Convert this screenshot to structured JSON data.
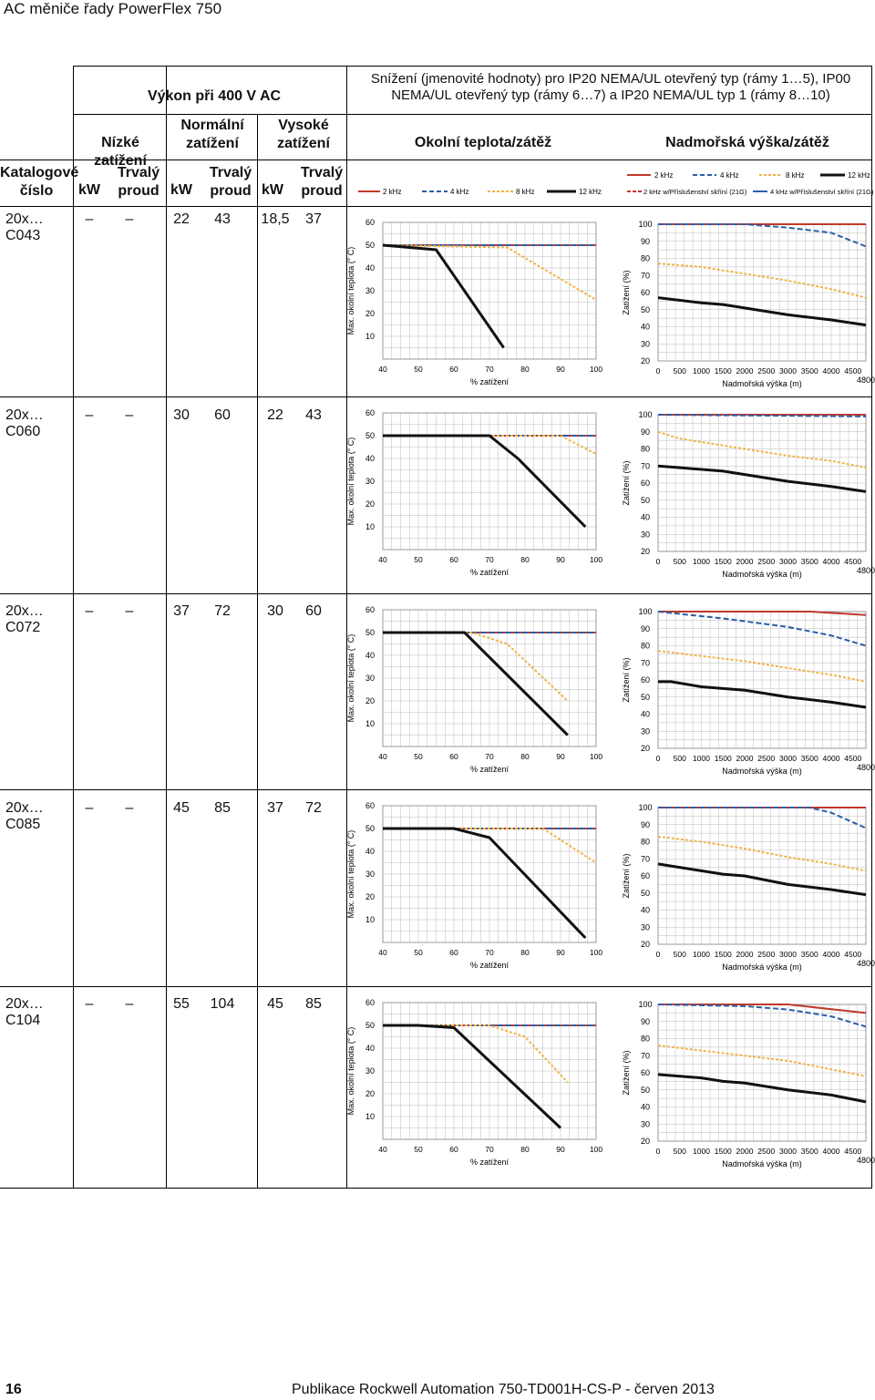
{
  "page": {
    "title": "AC měniče řady PowerFlex 750",
    "page_number": "16",
    "footer": "Publikace Rockwell Automation 750-TD001H-CS-P - červen 2013"
  },
  "header": {
    "power_group": "Výkon při 400 V AC",
    "derating_title": "Snížení (jmenovité hodnoty) pro IP20 NEMA/UL otevřený typ (rámy 1…5), IP00 NEMA/UL otevřený typ (rámy 6…7) a IP20 NEMA/UL typ 1 (rámy 8…10)",
    "low_duty": "Nízké zatížení",
    "normal_duty": "Normální zatížení",
    "heavy_duty": "Vysoké zatížení",
    "ambient_load": "Okolní teplota/zátěž",
    "altitude_load": "Nadmořská výška/zátěž",
    "catalog": "Katalogové číslo",
    "kw": "kW",
    "cont_current": "Trvalý proud"
  },
  "legend": {
    "ambient": [
      "2 kHz",
      "4 kHz",
      "8 kHz",
      "12 kHz"
    ],
    "altitude_top": [
      "2 kHz",
      "4 kHz",
      "8 kHz",
      "12 kHz"
    ],
    "altitude_bottom": [
      "2 kHz w/Příslušenství skříní (21G)",
      "4 kHz w/Příslušenství skříní (21G)"
    ]
  },
  "colors": {
    "k2": "#c0392b",
    "k4": "#2a5ea8",
    "k8": "#f0b34a",
    "k12": "#111111"
  },
  "axes": {
    "ambient_ylabel": "Max. okolní teplota (° C)",
    "ambient_xlabel": "% zatížení",
    "altitude_ylabel": "Zatížení (%)",
    "altitude_xlabel": "Nadmořská výška (m)",
    "altitude_extra": "4800"
  },
  "rows": [
    {
      "catalog": "20x…C043",
      "ld_kw": "–",
      "ld_a": "–",
      "nd_kw": "22",
      "nd_a": "43",
      "hd_kw": "18,5",
      "hd_a": "37"
    },
    {
      "catalog": "20x…C060",
      "ld_kw": "–",
      "ld_a": "–",
      "nd_kw": "30",
      "nd_a": "60",
      "hd_kw": "22",
      "hd_a": "43"
    },
    {
      "catalog": "20x…C072",
      "ld_kw": "–",
      "ld_a": "–",
      "nd_kw": "37",
      "nd_a": "72",
      "hd_kw": "30",
      "hd_a": "60"
    },
    {
      "catalog": "20x…C085",
      "ld_kw": "–",
      "ld_a": "–",
      "nd_kw": "45",
      "nd_a": "85",
      "hd_kw": "37",
      "hd_a": "72"
    },
    {
      "catalog": "20x…C104",
      "ld_kw": "–",
      "ld_a": "–",
      "nd_kw": "55",
      "nd_a": "104",
      "hd_kw": "45",
      "hd_a": "85"
    }
  ],
  "chart_data": [
    {
      "type": "line",
      "chart": "ambient",
      "row": "20x…C043",
      "xlim": [
        40,
        100
      ],
      "ylim": [
        0,
        60
      ],
      "xticks": [
        40,
        50,
        60,
        70,
        80,
        90,
        100
      ],
      "yticks": [
        10,
        20,
        30,
        40,
        50,
        60
      ],
      "series": [
        {
          "name": "2 kHz",
          "x": [
            40,
            100
          ],
          "y": [
            50,
            50
          ]
        },
        {
          "name": "4 kHz",
          "x": [
            40,
            100
          ],
          "y": [
            50,
            50
          ]
        },
        {
          "name": "8 kHz",
          "x": [
            40,
            75,
            100
          ],
          "y": [
            50,
            49,
            26
          ]
        },
        {
          "name": "12 kHz",
          "x": [
            40,
            55,
            74
          ],
          "y": [
            50,
            48,
            5
          ]
        }
      ]
    },
    {
      "type": "line",
      "chart": "altitude",
      "row": "20x…C043",
      "xlim": [
        0,
        4800
      ],
      "ylim": [
        20,
        100
      ],
      "xticks": [
        0,
        500,
        1000,
        1500,
        2000,
        2500,
        3000,
        3500,
        4000,
        4500
      ],
      "yticks": [
        20,
        30,
        40,
        50,
        60,
        70,
        80,
        90,
        100
      ],
      "series": [
        {
          "name": "2 kHz",
          "x": [
            0,
            4800
          ],
          "y": [
            100,
            100
          ]
        },
        {
          "name": "4 kHz",
          "x": [
            0,
            2000,
            3000,
            4000,
            4800
          ],
          "y": [
            100,
            100,
            98,
            95,
            87
          ]
        },
        {
          "name": "8 kHz",
          "x": [
            0,
            1000,
            2000,
            3000,
            4000,
            4800
          ],
          "y": [
            77,
            75,
            71,
            67,
            62,
            57
          ]
        },
        {
          "name": "12 kHz",
          "x": [
            0,
            1000,
            1500,
            2000,
            3000,
            4000,
            4800
          ],
          "y": [
            57,
            54,
            53,
            51,
            47,
            44,
            41
          ]
        }
      ]
    },
    {
      "type": "line",
      "chart": "ambient",
      "row": "20x…C060",
      "xlim": [
        40,
        100
      ],
      "ylim": [
        0,
        60
      ],
      "xticks": [
        40,
        50,
        60,
        70,
        80,
        90,
        100
      ],
      "yticks": [
        10,
        20,
        30,
        40,
        50,
        60
      ],
      "series": [
        {
          "name": "2 kHz",
          "x": [
            40,
            100
          ],
          "y": [
            50,
            50
          ]
        },
        {
          "name": "4 kHz",
          "x": [
            40,
            100
          ],
          "y": [
            50,
            50
          ]
        },
        {
          "name": "8 kHz",
          "x": [
            40,
            90,
            100
          ],
          "y": [
            50,
            50,
            42
          ]
        },
        {
          "name": "12 kHz",
          "x": [
            40,
            70,
            78,
            97
          ],
          "y": [
            50,
            50,
            40,
            10
          ]
        }
      ]
    },
    {
      "type": "line",
      "chart": "altitude",
      "row": "20x…C060",
      "xlim": [
        0,
        4800
      ],
      "ylim": [
        20,
        100
      ],
      "xticks": [
        0,
        500,
        1000,
        1500,
        2000,
        2500,
        3000,
        3500,
        4000,
        4500
      ],
      "yticks": [
        20,
        30,
        40,
        50,
        60,
        70,
        80,
        90,
        100
      ],
      "series": [
        {
          "name": "2 kHz",
          "x": [
            0,
            4800
          ],
          "y": [
            100,
            100
          ]
        },
        {
          "name": "4 kHz",
          "x": [
            0,
            4800
          ],
          "y": [
            100,
            99
          ]
        },
        {
          "name": "8 kHz",
          "x": [
            0,
            500,
            1000,
            2000,
            3000,
            4000,
            4800
          ],
          "y": [
            90,
            86,
            84,
            80,
            76,
            73,
            69
          ]
        },
        {
          "name": "12 kHz",
          "x": [
            0,
            1000,
            1500,
            2000,
            3000,
            4000,
            4800
          ],
          "y": [
            70,
            68,
            67,
            65,
            61,
            58,
            55
          ]
        }
      ]
    },
    {
      "type": "line",
      "chart": "ambient",
      "row": "20x…C072",
      "xlim": [
        40,
        100
      ],
      "ylim": [
        0,
        60
      ],
      "xticks": [
        40,
        50,
        60,
        70,
        80,
        90,
        100
      ],
      "yticks": [
        10,
        20,
        30,
        40,
        50,
        60
      ],
      "series": [
        {
          "name": "2 kHz",
          "x": [
            40,
            100
          ],
          "y": [
            50,
            50
          ]
        },
        {
          "name": "4 kHz",
          "x": [
            40,
            100
          ],
          "y": [
            50,
            50
          ]
        },
        {
          "name": "8 kHz",
          "x": [
            40,
            65,
            75,
            92
          ],
          "y": [
            50,
            50,
            45,
            20
          ]
        },
        {
          "name": "12 kHz",
          "x": [
            40,
            63,
            92
          ],
          "y": [
            50,
            50,
            5
          ]
        }
      ]
    },
    {
      "type": "line",
      "chart": "altitude",
      "row": "20x…C072",
      "xlim": [
        0,
        4800
      ],
      "ylim": [
        20,
        100
      ],
      "xticks": [
        0,
        500,
        1000,
        1500,
        2000,
        2500,
        3000,
        3500,
        4000,
        4500
      ],
      "yticks": [
        20,
        30,
        40,
        50,
        60,
        70,
        80,
        90,
        100
      ],
      "series": [
        {
          "name": "2 kHz",
          "x": [
            0,
            3500,
            4800
          ],
          "y": [
            100,
            100,
            98
          ]
        },
        {
          "name": "4 kHz",
          "x": [
            0,
            1500,
            3000,
            4000,
            4800
          ],
          "y": [
            100,
            96,
            91,
            86,
            80
          ]
        },
        {
          "name": "8 kHz",
          "x": [
            0,
            1000,
            2000,
            3000,
            4000,
            4800
          ],
          "y": [
            77,
            74,
            71,
            67,
            63,
            59
          ]
        },
        {
          "name": "12 kHz",
          "x": [
            0,
            300,
            1000,
            1500,
            2000,
            3000,
            4000,
            4800
          ],
          "y": [
            59,
            59,
            56,
            55,
            54,
            50,
            47,
            44
          ]
        }
      ]
    },
    {
      "type": "line",
      "chart": "ambient",
      "row": "20x…C085",
      "xlim": [
        40,
        100
      ],
      "ylim": [
        0,
        60
      ],
      "xticks": [
        40,
        50,
        60,
        70,
        80,
        90,
        100
      ],
      "yticks": [
        10,
        20,
        30,
        40,
        50,
        60
      ],
      "series": [
        {
          "name": "2 kHz",
          "x": [
            40,
            100
          ],
          "y": [
            50,
            50
          ]
        },
        {
          "name": "4 kHz",
          "x": [
            40,
            100
          ],
          "y": [
            50,
            50
          ]
        },
        {
          "name": "8 kHz",
          "x": [
            40,
            85,
            100
          ],
          "y": [
            50,
            50,
            35
          ]
        },
        {
          "name": "12 kHz",
          "x": [
            40,
            60,
            70,
            97
          ],
          "y": [
            50,
            50,
            46,
            2
          ]
        }
      ]
    },
    {
      "type": "line",
      "chart": "altitude",
      "row": "20x…C085",
      "xlim": [
        0,
        4800
      ],
      "ylim": [
        20,
        100
      ],
      "xticks": [
        0,
        500,
        1000,
        1500,
        2000,
        2500,
        3000,
        3500,
        4000,
        4500
      ],
      "yticks": [
        20,
        30,
        40,
        50,
        60,
        70,
        80,
        90,
        100
      ],
      "series": [
        {
          "name": "2 kHz",
          "x": [
            0,
            4800
          ],
          "y": [
            100,
            100
          ]
        },
        {
          "name": "4 kHz",
          "x": [
            0,
            3500,
            4000,
            4800
          ],
          "y": [
            100,
            100,
            97,
            88
          ]
        },
        {
          "name": "8 kHz",
          "x": [
            0,
            1000,
            2000,
            3000,
            4000,
            4800
          ],
          "y": [
            83,
            80,
            76,
            71,
            67,
            63
          ]
        },
        {
          "name": "12 kHz",
          "x": [
            0,
            1000,
            1500,
            2000,
            3000,
            4000,
            4800
          ],
          "y": [
            67,
            63,
            61,
            60,
            55,
            52,
            49
          ]
        }
      ]
    },
    {
      "type": "line",
      "chart": "ambient",
      "row": "20x…C104",
      "xlim": [
        40,
        100
      ],
      "ylim": [
        0,
        60
      ],
      "xticks": [
        40,
        50,
        60,
        70,
        80,
        90,
        100
      ],
      "yticks": [
        10,
        20,
        30,
        40,
        50,
        60
      ],
      "series": [
        {
          "name": "2 kHz",
          "x": [
            40,
            100
          ],
          "y": [
            50,
            50
          ]
        },
        {
          "name": "4 kHz",
          "x": [
            40,
            100
          ],
          "y": [
            50,
            50
          ]
        },
        {
          "name": "8 kHz",
          "x": [
            40,
            70,
            80,
            92
          ],
          "y": [
            50,
            50,
            45,
            25
          ]
        },
        {
          "name": "12 kHz",
          "x": [
            40,
            50,
            60,
            90
          ],
          "y": [
            50,
            50,
            49,
            5
          ]
        }
      ]
    },
    {
      "type": "line",
      "chart": "altitude",
      "row": "20x…C104",
      "xlim": [
        0,
        4800
      ],
      "ylim": [
        20,
        100
      ],
      "xticks": [
        0,
        500,
        1000,
        1500,
        2000,
        2500,
        3000,
        3500,
        4000,
        4500
      ],
      "yticks": [
        20,
        30,
        40,
        50,
        60,
        70,
        80,
        90,
        100
      ],
      "series": [
        {
          "name": "2 kHz",
          "x": [
            0,
            3000,
            4800
          ],
          "y": [
            100,
            100,
            95
          ]
        },
        {
          "name": "4 kHz",
          "x": [
            0,
            2000,
            3000,
            4000,
            4800
          ],
          "y": [
            100,
            99,
            97,
            93,
            87
          ]
        },
        {
          "name": "8 kHz",
          "x": [
            0,
            1000,
            2000,
            3000,
            4000,
            4800
          ],
          "y": [
            76,
            73,
            70,
            67,
            62,
            58
          ]
        },
        {
          "name": "12 kHz",
          "x": [
            0,
            1000,
            1500,
            2000,
            3000,
            4000,
            4800
          ],
          "y": [
            59,
            57,
            55,
            54,
            50,
            47,
            43
          ]
        }
      ]
    }
  ]
}
